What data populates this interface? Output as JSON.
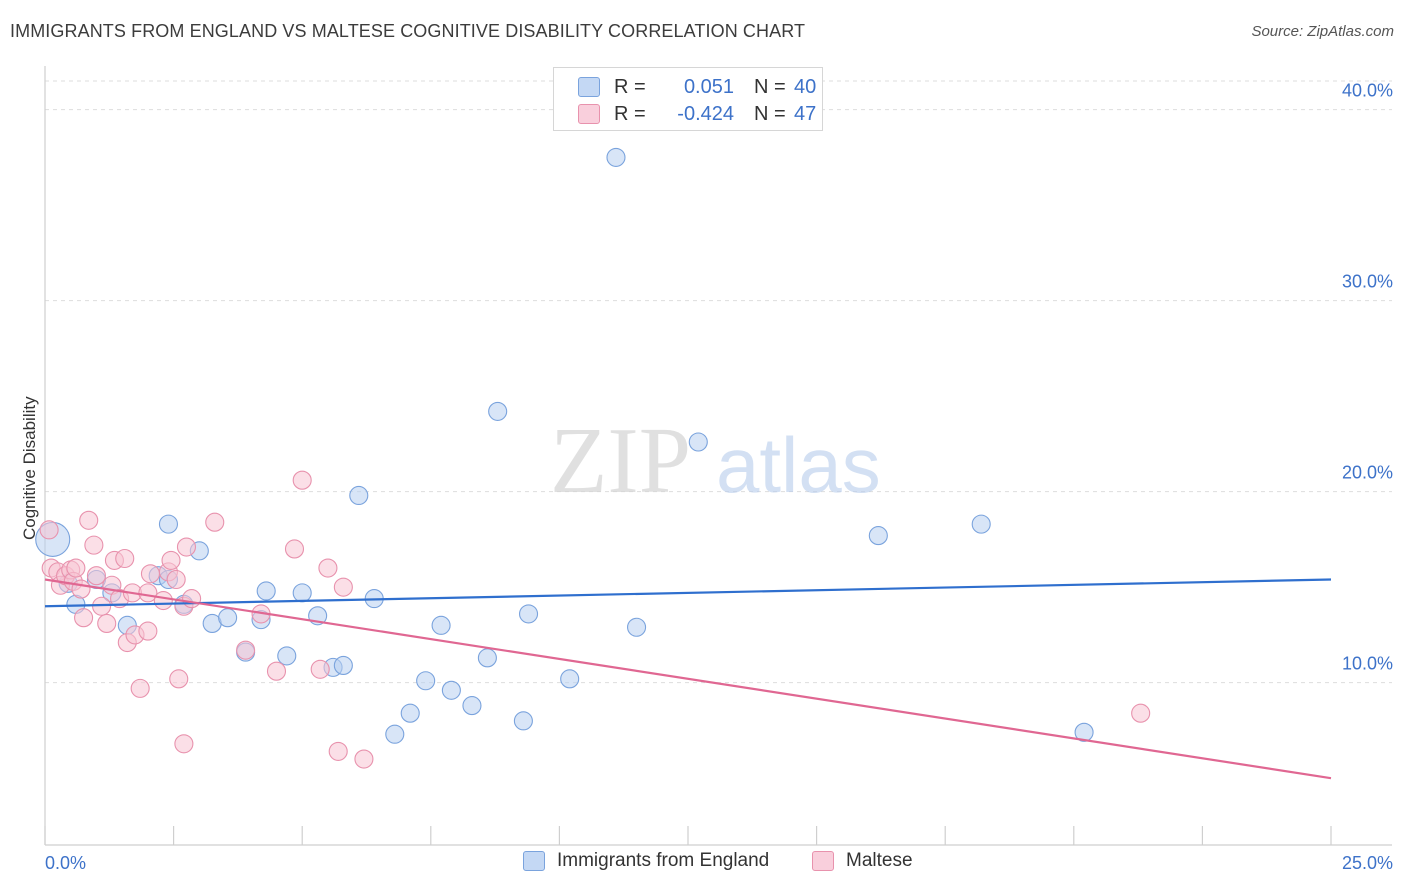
{
  "title": "IMMIGRANTS FROM ENGLAND VS MALTESE COGNITIVE DISABILITY CORRELATION CHART",
  "source": "Source: ZipAtlas.com",
  "watermark": {
    "zip": "ZIP",
    "atlas": "atlas"
  },
  "legend": {
    "rows": [
      {
        "r_label": "R =",
        "r_value": "0.051",
        "n_label": "N =",
        "n_value": "40"
      },
      {
        "r_label": "R =",
        "r_value": "-0.424",
        "n_label": "N =",
        "n_value": "47"
      }
    ]
  },
  "colors": {
    "england_fill": "#b8d0f0",
    "england_stroke": "#7aa3dd",
    "england_line": "#2f6fce",
    "maltese_fill": "#f7c4d3",
    "maltese_stroke": "#e892ad",
    "maltese_line": "#e06792",
    "axis_text": "#3d72c9",
    "grid": "#dddddd"
  },
  "chart_data": {
    "type": "scatter",
    "title": "IMMIGRANTS FROM ENGLAND VS MALTESE COGNITIVE DISABILITY CORRELATION CHART",
    "xlabel": "",
    "ylabel": "Cognitive Disability",
    "xlim": [
      0,
      25
    ],
    "ylim": [
      1.5,
      41.5
    ],
    "x_tick_labels": [
      "0.0%",
      "25.0%"
    ],
    "y_ticks": [
      10,
      20,
      30,
      40
    ],
    "y_tick_labels": [
      "10.0%",
      "20.0%",
      "30.0%",
      "40.0%"
    ],
    "grid": "horizontal dashed",
    "legend_position": "top-center and bottom",
    "series": [
      {
        "name": "Immigrants from England",
        "r": 0.051,
        "n": 40,
        "trend": {
          "x": [
            0,
            25
          ],
          "y": [
            14.0,
            15.4
          ]
        },
        "points": [
          [
            0.15,
            17.5,
            34
          ],
          [
            0.45,
            15.2,
            18
          ],
          [
            0.6,
            14.1,
            18
          ],
          [
            1.0,
            15.4,
            18
          ],
          [
            1.3,
            14.7,
            18
          ],
          [
            1.6,
            13.0,
            18
          ],
          [
            2.2,
            15.6,
            18
          ],
          [
            2.4,
            18.3,
            18
          ],
          [
            2.4,
            15.4,
            18
          ],
          [
            2.7,
            14.1,
            18
          ],
          [
            3.0,
            16.9,
            18
          ],
          [
            3.25,
            13.1,
            18
          ],
          [
            3.55,
            13.4,
            18
          ],
          [
            3.9,
            11.6,
            18
          ],
          [
            4.2,
            13.3,
            18
          ],
          [
            4.3,
            14.8,
            18
          ],
          [
            4.7,
            11.4,
            18
          ],
          [
            5.0,
            14.7,
            18
          ],
          [
            5.3,
            13.5,
            18
          ],
          [
            5.6,
            10.8,
            18
          ],
          [
            5.8,
            10.9,
            18
          ],
          [
            6.1,
            19.8,
            18
          ],
          [
            6.4,
            14.4,
            18
          ],
          [
            6.8,
            7.3,
            18
          ],
          [
            7.1,
            8.4,
            18
          ],
          [
            7.4,
            10.1,
            18
          ],
          [
            7.7,
            13.0,
            18
          ],
          [
            7.9,
            9.6,
            18
          ],
          [
            8.3,
            8.8,
            18
          ],
          [
            8.6,
            11.3,
            18
          ],
          [
            8.8,
            24.2,
            18
          ],
          [
            9.3,
            8.0,
            18
          ],
          [
            9.4,
            13.6,
            18
          ],
          [
            10.2,
            10.2,
            18
          ],
          [
            11.1,
            37.5,
            18
          ],
          [
            11.5,
            12.9,
            18
          ],
          [
            12.7,
            22.6,
            18
          ],
          [
            16.2,
            17.7,
            18
          ],
          [
            18.2,
            18.3,
            18
          ],
          [
            20.2,
            7.4,
            18
          ]
        ]
      },
      {
        "name": "Maltese",
        "r": -0.424,
        "n": 47,
        "trend": {
          "x": [
            0,
            25
          ],
          "y": [
            15.4,
            5.0
          ]
        },
        "points": [
          [
            0.08,
            18.0,
            18
          ],
          [
            0.12,
            16.0,
            18
          ],
          [
            0.25,
            15.8,
            18
          ],
          [
            0.3,
            15.1,
            18
          ],
          [
            0.4,
            15.6,
            18
          ],
          [
            0.5,
            15.9,
            18
          ],
          [
            0.55,
            15.3,
            18
          ],
          [
            0.6,
            16.0,
            18
          ],
          [
            0.7,
            14.9,
            18
          ],
          [
            0.75,
            13.4,
            18
          ],
          [
            0.85,
            18.5,
            18
          ],
          [
            0.95,
            17.2,
            18
          ],
          [
            1.0,
            15.6,
            18
          ],
          [
            1.1,
            14.0,
            18
          ],
          [
            1.2,
            13.1,
            18
          ],
          [
            1.3,
            15.1,
            18
          ],
          [
            1.35,
            16.4,
            18
          ],
          [
            1.45,
            14.4,
            18
          ],
          [
            1.55,
            16.5,
            18
          ],
          [
            1.6,
            12.1,
            18
          ],
          [
            1.7,
            14.7,
            18
          ],
          [
            1.75,
            12.5,
            18
          ],
          [
            1.85,
            9.7,
            18
          ],
          [
            2.0,
            14.7,
            18
          ],
          [
            2.0,
            12.7,
            18
          ],
          [
            2.05,
            15.7,
            18
          ],
          [
            2.3,
            14.3,
            18
          ],
          [
            2.4,
            15.8,
            18
          ],
          [
            2.45,
            16.4,
            18
          ],
          [
            2.55,
            15.4,
            18
          ],
          [
            2.6,
            10.2,
            18
          ],
          [
            2.7,
            14.0,
            18
          ],
          [
            2.7,
            6.8,
            18
          ],
          [
            2.75,
            17.1,
            18
          ],
          [
            2.85,
            14.4,
            18
          ],
          [
            3.3,
            18.4,
            18
          ],
          [
            3.9,
            11.7,
            18
          ],
          [
            4.5,
            10.6,
            18
          ],
          [
            4.85,
            17.0,
            18
          ],
          [
            5.0,
            20.6,
            18
          ],
          [
            5.35,
            10.7,
            18
          ],
          [
            5.5,
            16.0,
            18
          ],
          [
            5.7,
            6.4,
            18
          ],
          [
            5.8,
            15.0,
            18
          ],
          [
            6.2,
            6.0,
            18
          ],
          [
            21.3,
            8.4,
            18
          ],
          [
            4.2,
            13.6,
            18
          ]
        ]
      }
    ]
  }
}
